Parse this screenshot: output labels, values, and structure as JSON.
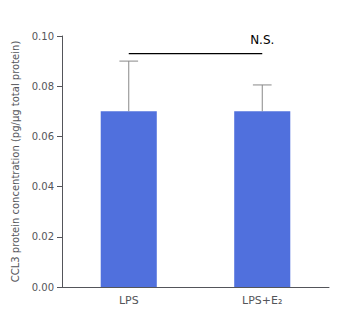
{
  "chart_data": {
    "type": "bar",
    "categories": [
      "LPS",
      "LPS+E₂"
    ],
    "values": [
      0.07,
      0.07
    ],
    "errors_upper": [
      0.02,
      0.0105
    ],
    "ylabel": "CCL3 protein concentration (pg/μg total protein)",
    "ylim": [
      0.0,
      0.1
    ],
    "yticks": [
      {
        "value": 0.0,
        "label": "0.00"
      },
      {
        "value": 0.02,
        "label": "0.02"
      },
      {
        "value": 0.04,
        "label": "0.04"
      },
      {
        "value": 0.06,
        "label": "0.06"
      },
      {
        "value": 0.08,
        "label": "0.08"
      },
      {
        "value": 0.1,
        "label": "0.10"
      }
    ],
    "grid": false,
    "annotations": [
      {
        "text": "N.S.",
        "y": 0.096,
        "line_y": 0.093,
        "from": "LPS",
        "to": "LPS+E₂"
      }
    ]
  }
}
